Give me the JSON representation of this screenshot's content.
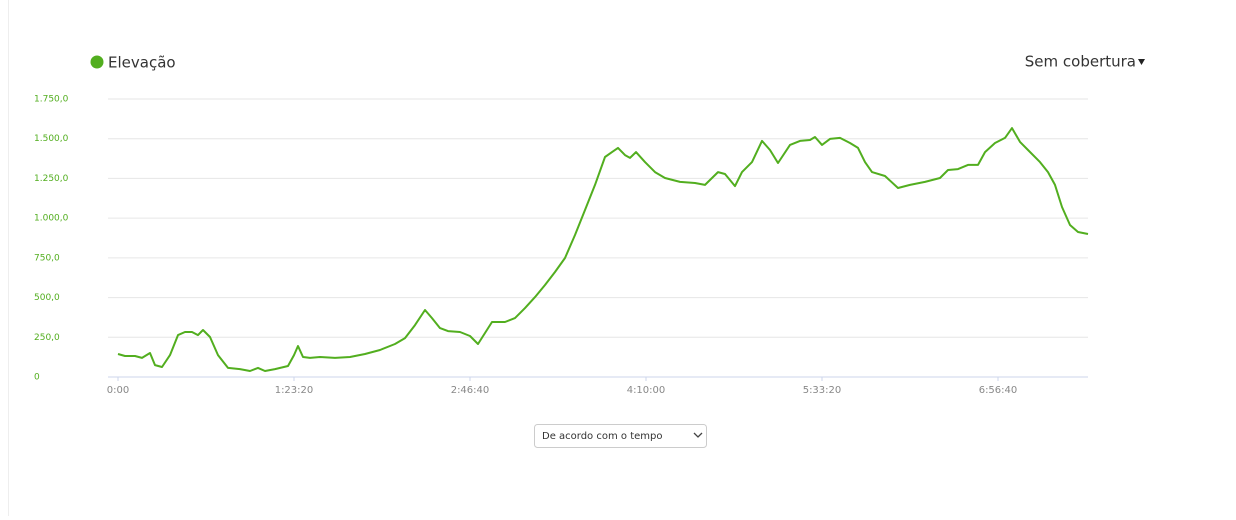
{
  "chart_data": {
    "type": "line",
    "x": [
      0,
      199,
      483,
      682,
      909,
      1051,
      1250,
      1477,
      1705,
      1903,
      2102,
      2273,
      2415,
      2614,
      2841,
      3125,
      3466,
      3750,
      3977,
      4176,
      4460,
      4830,
      5000,
      5114,
      5256,
      5455,
      5739,
      6165,
      6591,
      7017,
      7443,
      7869,
      8153,
      8438,
      8722,
      8920,
      9148,
      9375,
      9716,
      10000,
      10227,
      10426,
      10625,
      10994,
      11278,
      11563,
      11847,
      12131,
      12415,
      12699,
      12983,
      13267,
      13551,
      13835,
      14034,
      14205,
      14403,
      14545,
      14716,
      14972,
      15256,
      15540,
      15966,
      16392,
      16676,
      17045,
      17244,
      17528,
      17727,
      18011,
      18295,
      18523,
      18750,
      19091,
      19375,
      19659,
      19801,
      20000,
      20227,
      20511,
      20795,
      21023,
      21222,
      21420,
      21790,
      22159,
      22500,
      22926,
      23352,
      23580,
      23864,
      24148,
      24432,
      24631,
      24915,
      25199,
      25398,
      25625,
      25852,
      26193,
      26420,
      26619,
      26818,
      27045,
      27273,
      27557
    ],
    "series": [
      {
        "name": "Elevação",
        "color": "#52ae1f",
        "values": [
          145,
          132,
          132,
          120,
          151,
          75,
          63,
          138,
          264,
          283,
          283,
          264,
          296,
          252,
          138,
          57,
          50,
          38,
          57,
          38,
          50,
          69,
          138,
          195,
          126,
          120,
          126,
          120,
          126,
          145,
          170,
          208,
          245,
          327,
          422,
          371,
          308,
          289,
          283,
          258,
          208,
          277,
          346,
          346,
          371,
          434,
          503,
          579,
          661,
          749,
          894,
          1051,
          1209,
          1385,
          1416,
          1442,
          1397,
          1379,
          1416,
          1353,
          1290,
          1253,
          1228,
          1221,
          1209,
          1290,
          1278,
          1202,
          1290,
          1353,
          1486,
          1429,
          1347,
          1461,
          1486,
          1492,
          1511,
          1461,
          1499,
          1505,
          1473,
          1442,
          1353,
          1290,
          1265,
          1190,
          1209,
          1228,
          1253,
          1303,
          1309,
          1335,
          1335,
          1416,
          1473,
          1505,
          1567,
          1480,
          1429,
          1353,
          1290,
          1209,
          1070,
          957,
          913,
          900
        ]
      }
    ],
    "xlim": [
      0,
      27557
    ],
    "ylim": [
      0,
      1750
    ],
    "xticks": [
      {
        "value": 0,
        "label": "0:00"
      },
      {
        "value": 5000,
        "label": "1:23:20"
      },
      {
        "value": 10000,
        "label": "2:46:40"
      },
      {
        "value": 15000,
        "label": "4:10:00"
      },
      {
        "value": 20000,
        "label": "5:33:20"
      },
      {
        "value": 25000,
        "label": "6:56:40"
      }
    ],
    "yticks": [
      0,
      {
        "value": 250,
        "label": "250,0"
      },
      {
        "value": 500,
        "label": "500,0"
      },
      {
        "value": 750,
        "label": "750,0"
      },
      {
        "value": 1000,
        "label": "1.000,0"
      },
      {
        "value": 1250,
        "label": "1.250,0"
      },
      {
        "value": 1500,
        "label": "1.500,0"
      },
      {
        "value": 1750,
        "label": "1.750,0"
      }
    ],
    "grid": true
  },
  "coverage_menu": "Sem cobertura",
  "x_mode_select": "De acordo com o tempo"
}
